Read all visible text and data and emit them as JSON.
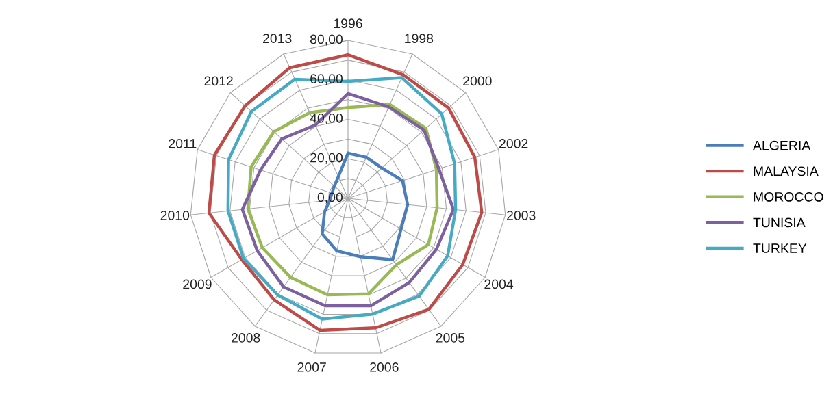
{
  "chart_data": {
    "type": "radar",
    "categories": [
      "1996",
      "1998",
      "2000",
      "2002",
      "2003",
      "2004",
      "2005",
      "2006",
      "2007",
      "2008",
      "2009",
      "2010",
      "2011",
      "2012",
      "2013"
    ],
    "series": [
      {
        "name": "ALGERIA",
        "color": "#4a7ebb",
        "values": [
          22.9,
          22.8,
          23,
          29,
          30.3,
          31,
          38.4,
          30.2,
          27.2,
          22.2,
          13.7,
          9.3,
          8.5,
          9.3,
          12
        ]
      },
      {
        "name": "MALAYSIA",
        "color": "#be4b48",
        "values": [
          72.7,
          68.5,
          68.4,
          67.4,
          68,
          67,
          69.5,
          67,
          68.3,
          63.5,
          62,
          70.7,
          71,
          70,
          72.4
        ]
      },
      {
        "name": "MOROCCO",
        "color": "#98b954",
        "values": [
          46,
          52,
          53,
          47,
          45.3,
          46.9,
          41.6,
          49.5,
          49.9,
          49.4,
          50,
          50.9,
          51.5,
          50.5,
          47.5
        ]
      },
      {
        "name": "TUNISIA",
        "color": "#7d60a0",
        "values": [
          53,
          50.7,
          51.7,
          48.3,
          53.6,
          51.6,
          52.7,
          55.6,
          55.6,
          55.4,
          53,
          53.7,
          46.5,
          45,
          40.6
        ]
      },
      {
        "name": "TURKEY",
        "color": "#46aac5",
        "values": [
          59.2,
          66.9,
          63.8,
          56.7,
          54.7,
          58.2,
          61.2,
          59.9,
          62.5,
          60.5,
          61,
          61,
          63.5,
          65.7,
          66
        ]
      }
    ],
    "ylim": [
      0,
      80
    ],
    "yticks": [
      {
        "value": 0,
        "label": "0,00"
      },
      {
        "value": 20,
        "label": "20,00"
      },
      {
        "value": 40,
        "label": "40,00"
      },
      {
        "value": 60,
        "label": "60,00"
      },
      {
        "value": 80,
        "label": "80,00"
      }
    ],
    "grid": true,
    "legend": "right"
  }
}
